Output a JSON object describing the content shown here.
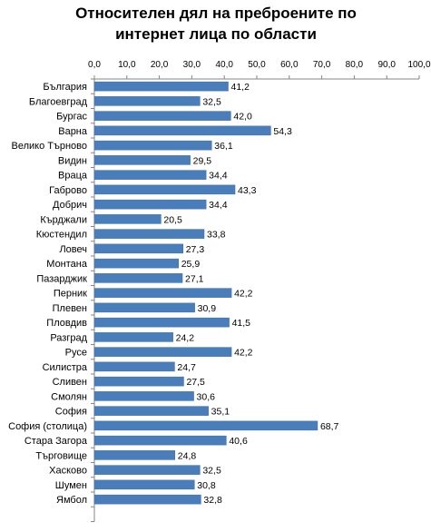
{
  "chart_data": {
    "type": "bar",
    "orientation": "horizontal",
    "title_lines": [
      "Относителен дял на преброените по",
      "интернет лица по области"
    ],
    "xlim": [
      0,
      100
    ],
    "xticks": [
      "0,0",
      "10,0",
      "20,0",
      "30,0",
      "40,0",
      "50,0",
      "60,0",
      "70,0",
      "80,0",
      "90,0",
      "100,0"
    ],
    "xaxis_position": "top",
    "grid": false,
    "bar_color": "#4a7ebb",
    "categories": [
      "България",
      "Благоевград",
      "Бургас",
      "Варна",
      "Велико Търново",
      "Видин",
      "Враца",
      "Габрово",
      "Добрич",
      "Кърджали",
      "Кюстендил",
      "Ловеч",
      "Монтана",
      "Пазарджик",
      "Перник",
      "Плевен",
      "Пловдив",
      "Разград",
      "Русе",
      "Силистра",
      "Сливен",
      "Смолян",
      "София",
      "София (столица)",
      "Стара Загора",
      "Търговище",
      "Хасково",
      "Шумен",
      "Ямбол"
    ],
    "values": [
      41.2,
      32.5,
      42.0,
      54.3,
      36.1,
      29.5,
      34.4,
      43.3,
      34.4,
      20.5,
      33.8,
      27.3,
      25.9,
      27.1,
      42.2,
      30.9,
      41.5,
      24.2,
      42.2,
      24.7,
      27.5,
      30.6,
      35.1,
      68.7,
      40.6,
      24.8,
      32.5,
      30.8,
      32.8
    ],
    "value_labels": [
      "41,2",
      "32,5",
      "42,0",
      "54,3",
      "36,1",
      "29,5",
      "34,4",
      "43,3",
      "34,4",
      "20,5",
      "33,8",
      "27,3",
      "25,9",
      "27,1",
      "42,2",
      "30,9",
      "41,5",
      "24,2",
      "42,2",
      "24,7",
      "27,5",
      "30,6",
      "35,1",
      "68,7",
      "40,6",
      "24,8",
      "32,5",
      "30,8",
      "32,8"
    ]
  }
}
